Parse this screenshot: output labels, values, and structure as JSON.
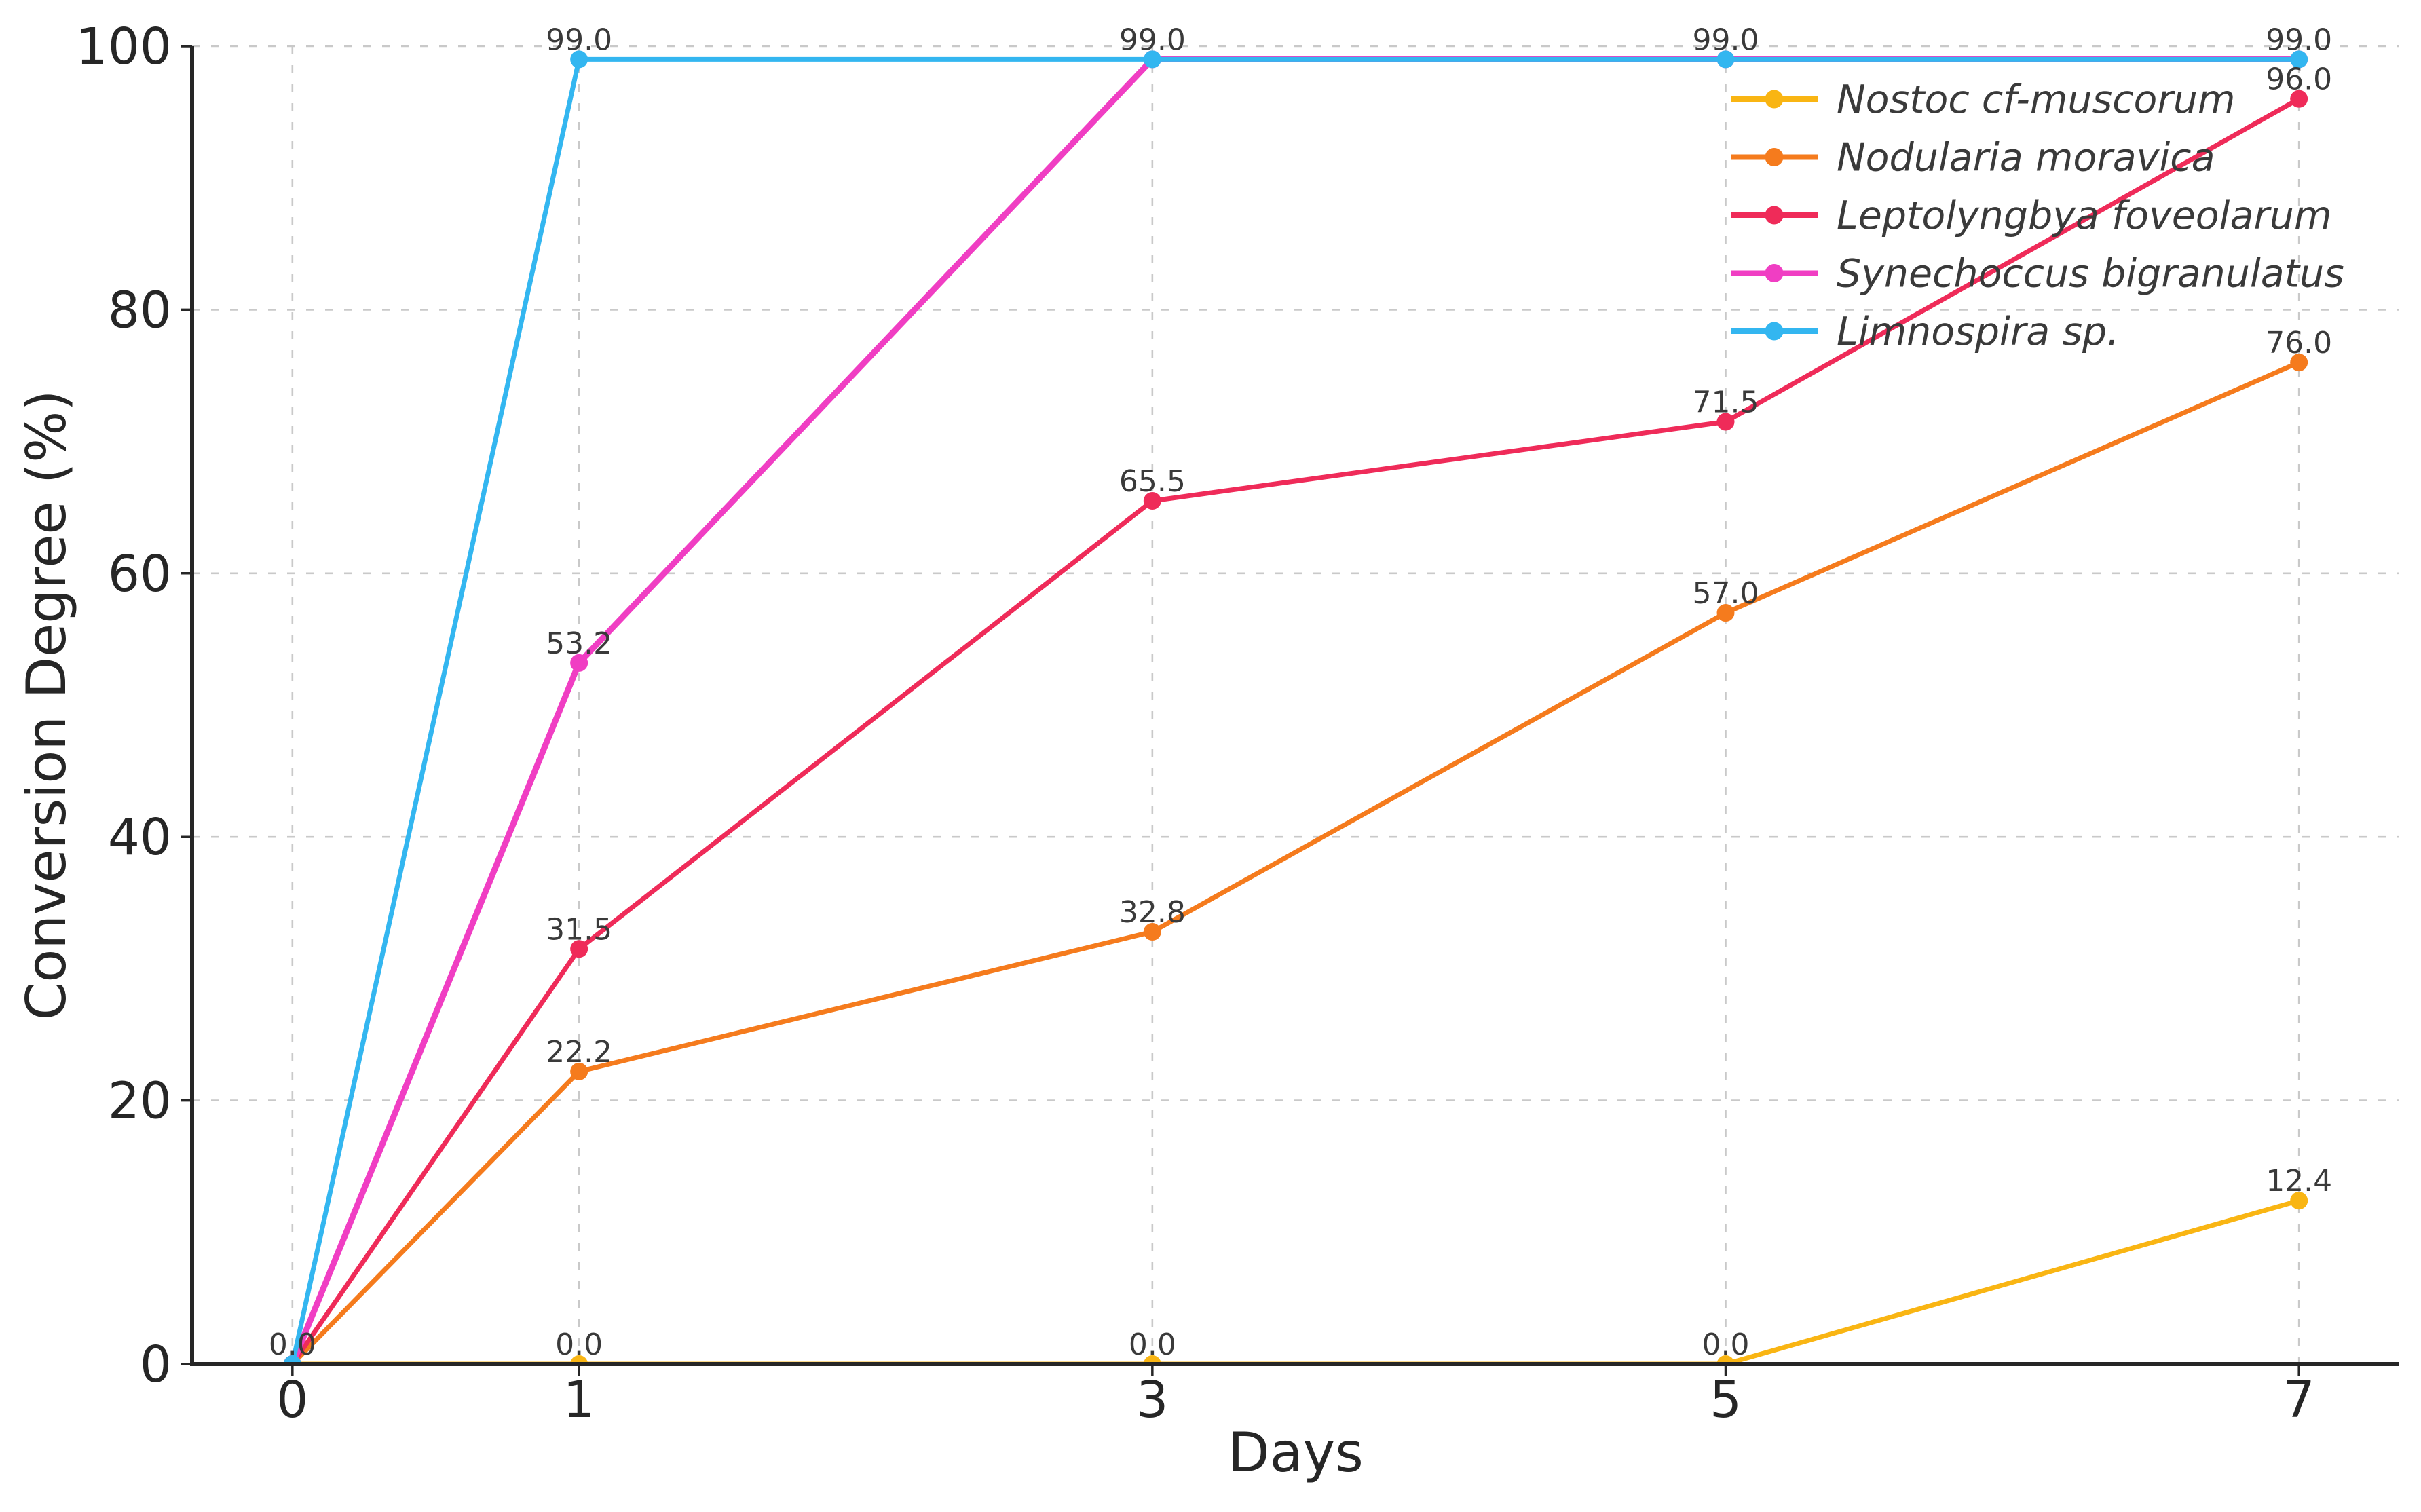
{
  "chart_data": {
    "type": "line",
    "xlabel": "Days",
    "ylabel": "Conversion Degree (%)",
    "x": [
      0,
      1,
      3,
      5,
      7
    ],
    "xticks": [
      0,
      1,
      3,
      5,
      7
    ],
    "yticks": [
      0,
      20,
      40,
      60,
      80,
      100
    ],
    "xlim": [
      -0.35,
      7.35
    ],
    "ylim": [
      0,
      100
    ],
    "grid": "dashed",
    "legend_position": "upper-right",
    "series": [
      {
        "name": "Nostoc cf-muscorum",
        "color": "#F9B513",
        "values": [
          0.0,
          0.0,
          0.0,
          0.0,
          12.4
        ],
        "point_labels": [
          "0.0",
          "0.0",
          "0.0",
          "0.0",
          "12.4"
        ]
      },
      {
        "name": "Nodularia moravica",
        "color": "#F57B1D",
        "values": [
          0.0,
          22.2,
          32.8,
          57.0,
          76.0
        ],
        "point_labels": [
          null,
          "22.2",
          "32.8",
          "57.0",
          "76.0"
        ]
      },
      {
        "name": "Leptolyngbya foveolarum",
        "color": "#EF2B59",
        "values": [
          0.0,
          31.5,
          65.5,
          71.5,
          96.0
        ],
        "point_labels": [
          null,
          "31.5",
          "65.5",
          "71.5",
          "96.0"
        ]
      },
      {
        "name": "Synechoccus bigranulatus",
        "color": "#F03EC3",
        "values": [
          0.0,
          53.2,
          99.0,
          99.0,
          99.0
        ],
        "point_labels": [
          null,
          "53.2",
          null,
          null,
          null
        ]
      },
      {
        "name": "Limnospira sp.",
        "color": "#33B6F0",
        "values": [
          0.0,
          99.0,
          99.0,
          99.0,
          99.0
        ],
        "point_labels": [
          null,
          "99.0",
          "99.0",
          "99.0",
          "99.0"
        ]
      }
    ],
    "colors": {
      "axis": "#262626",
      "grid": "#c9c9c9",
      "data_label": "#3a3a3a",
      "legend_text": "#3a3a3a",
      "background": "#ffffff"
    }
  }
}
